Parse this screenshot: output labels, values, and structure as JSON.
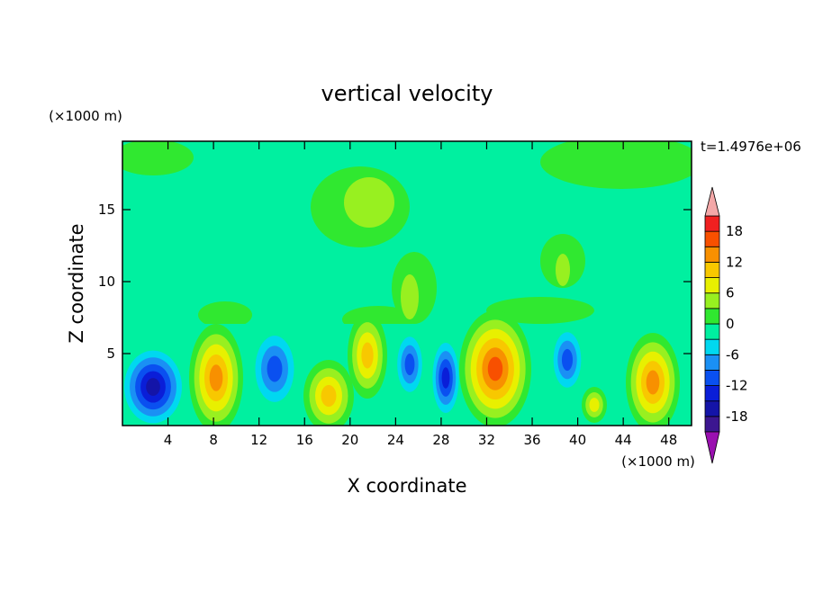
{
  "chart_data": {
    "type": "contour",
    "title": "vertical velocity",
    "x_label": "X coordinate",
    "y_label": "Z coordinate",
    "x_unit": "(×1000 m)",
    "y_unit": "(×1000 m)",
    "time_label": "t=1.4976e+06",
    "xlim": [
      0,
      50
    ],
    "xticks": [
      4,
      8,
      12,
      16,
      20,
      24,
      28,
      32,
      36,
      40,
      44,
      48
    ],
    "ylim": [
      0,
      19.75
    ],
    "yticks": [
      5,
      10,
      15
    ],
    "colorbar": {
      "levels": [
        -21,
        -18,
        -15,
        -12,
        -9,
        -6,
        -3,
        0,
        3,
        6,
        9,
        12,
        15,
        18,
        21
      ],
      "ticks": [
        -18,
        -12,
        -6,
        0,
        6,
        12,
        18
      ],
      "colors": [
        "#3c1690",
        "#1414a8",
        "#0a1ed8",
        "#0a50f0",
        "#1a90f4",
        "#00d8f0",
        "#00f0a0",
        "#30e830",
        "#98f020",
        "#e8f000",
        "#f8c800",
        "#f89000",
        "#f85000",
        "#f02020"
      ],
      "over_color": "#f4a8a8",
      "under_color": "#9a10b0"
    }
  }
}
